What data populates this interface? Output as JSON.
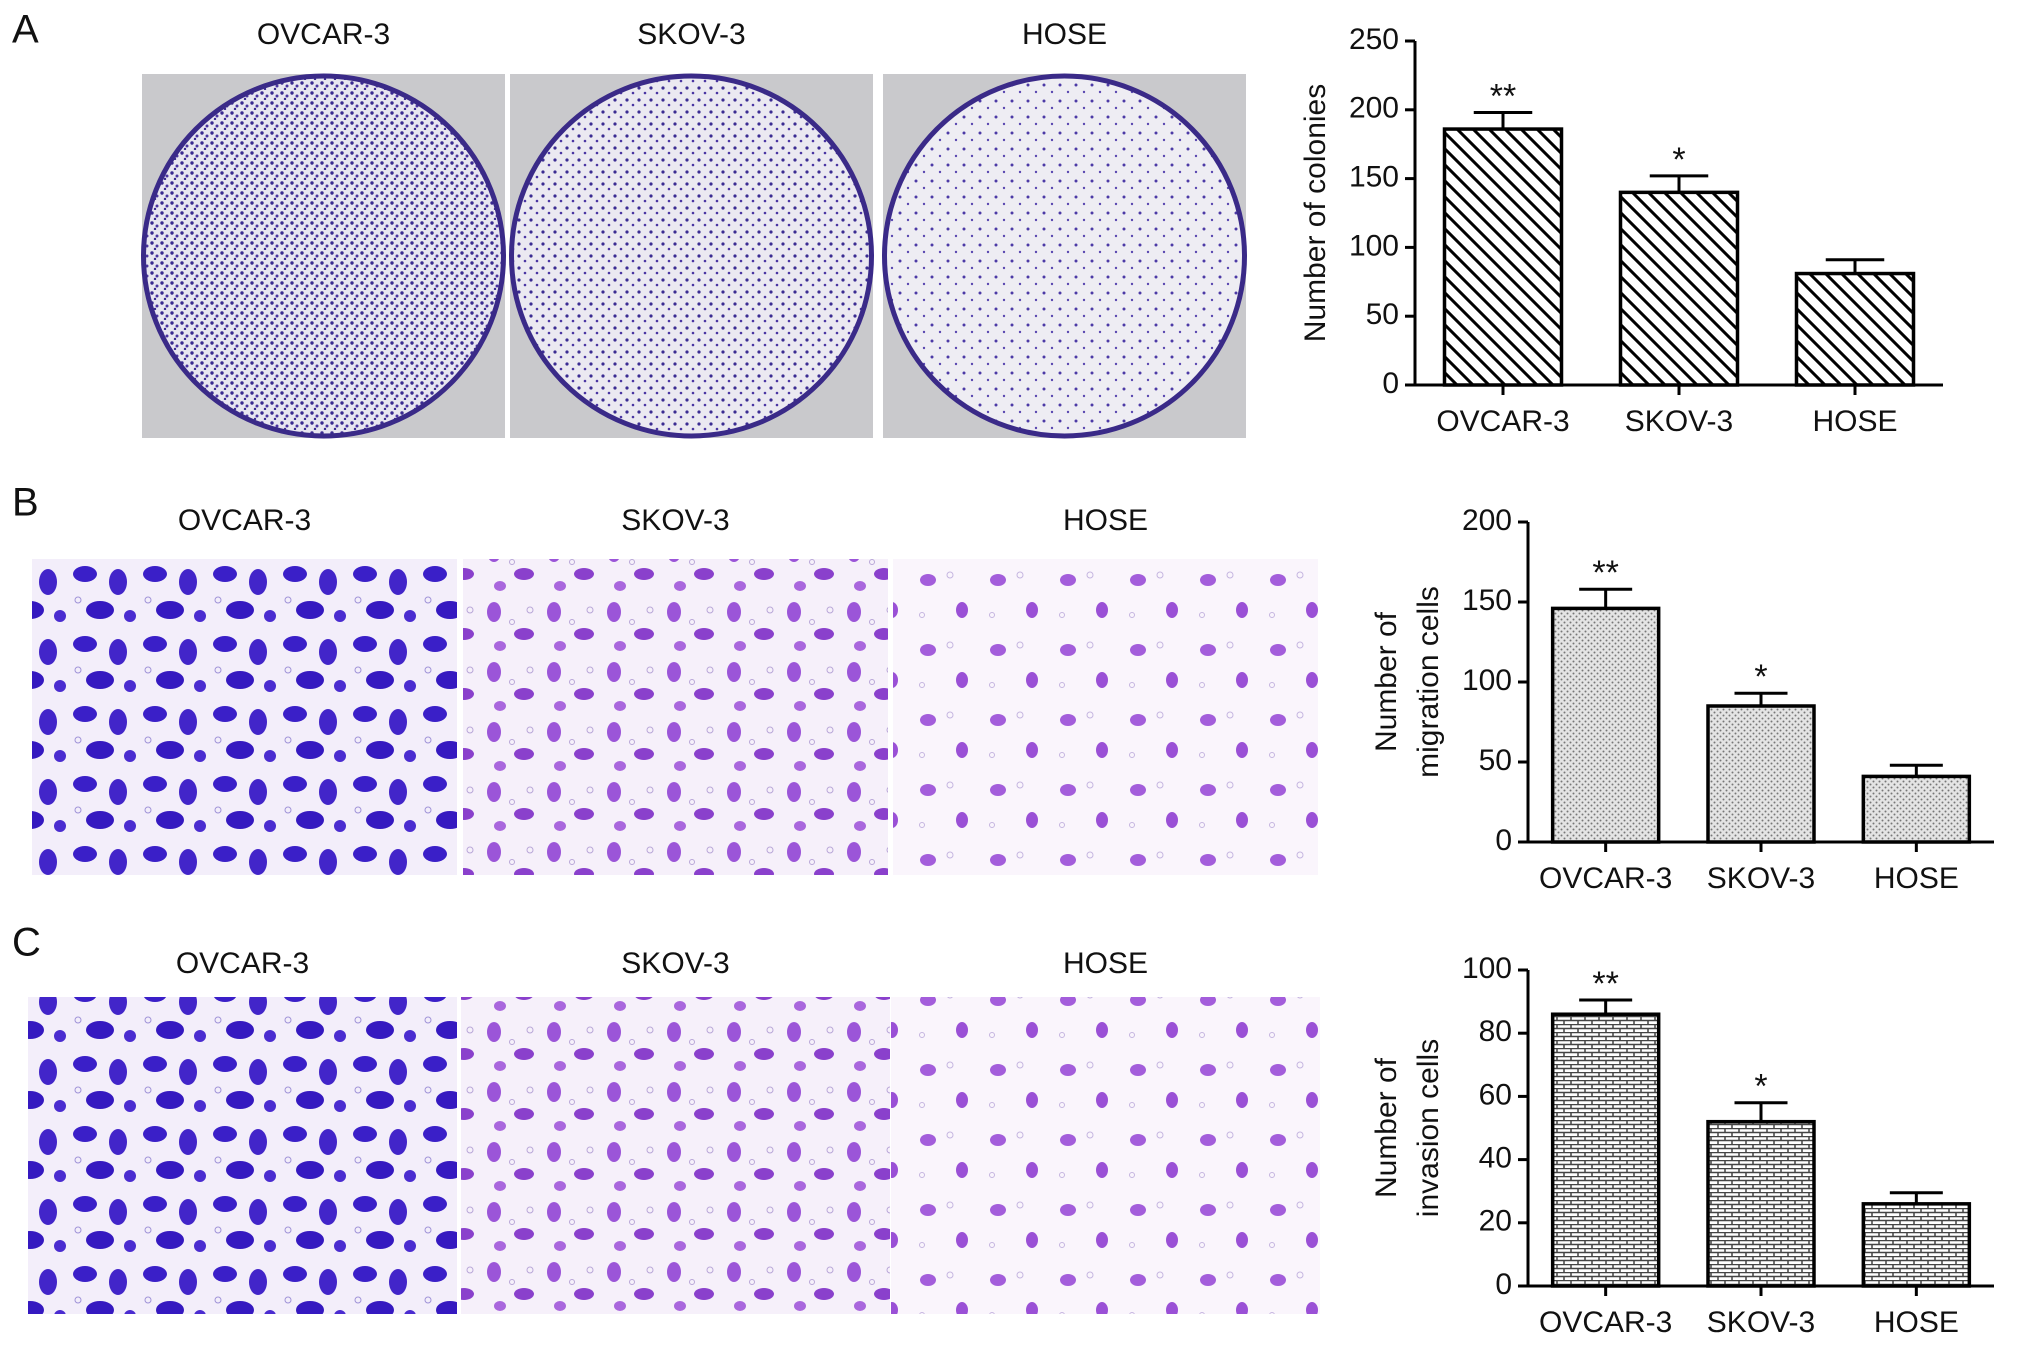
{
  "panels": [
    {
      "letter": "A",
      "image_labels": [
        "OVCAR-3",
        "SKOV-3",
        "HOSE"
      ]
    },
    {
      "letter": "B",
      "image_labels": [
        "OVCAR-3",
        "SKOV-3",
        "HOSE"
      ]
    },
    {
      "letter": "C",
      "image_labels": [
        "OVCAR-3",
        "SKOV-3",
        "HOSE"
      ]
    }
  ],
  "chart_data": [
    {
      "type": "bar",
      "ylabel": [
        "Number of colonies"
      ],
      "categories": [
        "OVCAR-3",
        "SKOV-3",
        "HOSE"
      ],
      "values": [
        186,
        140,
        81
      ],
      "errors": [
        12,
        12,
        10
      ],
      "value_annotations": [
        "**",
        "*",
        null
      ],
      "pattern": "diagonal",
      "color": "#000000",
      "ylim": [
        0,
        250
      ],
      "yticks": [
        0,
        50,
        100,
        150,
        200,
        250
      ]
    },
    {
      "type": "bar",
      "ylabel": [
        "Number of",
        "migration cells"
      ],
      "categories": [
        "OVCAR-3",
        "SKOV-3",
        "HOSE"
      ],
      "values": [
        146,
        85,
        41
      ],
      "errors": [
        12,
        8,
        7
      ],
      "value_annotations": [
        "**",
        "*",
        null
      ],
      "pattern": "dots",
      "color": "#000000",
      "ylim": [
        0,
        200
      ],
      "yticks": [
        0,
        50,
        100,
        150,
        200
      ]
    },
    {
      "type": "bar",
      "ylabel": [
        "Number of",
        "invasion cells"
      ],
      "categories": [
        "OVCAR-3",
        "SKOV-3",
        "HOSE"
      ],
      "values": [
        86,
        52,
        26
      ],
      "errors": [
        4.5,
        6,
        3.5
      ],
      "value_annotations": [
        "**",
        "*",
        null
      ],
      "pattern": "brick",
      "color": "#000000",
      "ylim": [
        0,
        100
      ],
      "yticks": [
        0,
        20,
        40,
        60,
        80,
        100
      ]
    }
  ]
}
